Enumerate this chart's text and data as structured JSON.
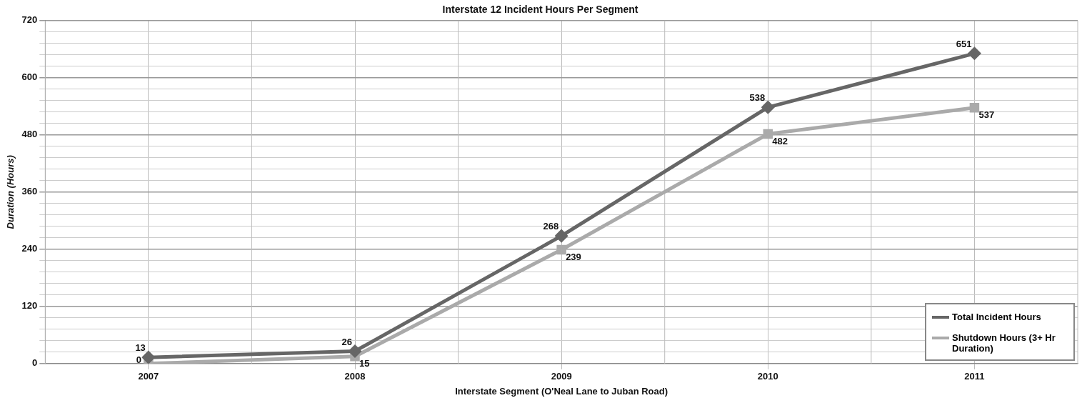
{
  "chart_data": {
    "type": "line",
    "title": "Interstate 12 Incident Hours Per Segment",
    "xlabel": "Interstate Segment (O'Neal Lane to Juban Road)",
    "ylabel": "Duration (Hours)",
    "categories": [
      "2007",
      "2008",
      "2009",
      "2010",
      "2011"
    ],
    "series": [
      {
        "name": "Total Incident Hours",
        "color": "#666666",
        "marker": "diamond",
        "values": [
          13,
          26,
          268,
          538,
          651
        ]
      },
      {
        "name": "Shutdown Hours (3+ Hr Duration)",
        "color": "#aaaaaa",
        "marker": "square",
        "values": [
          0,
          15,
          239,
          482,
          537
        ]
      }
    ],
    "ylim": [
      0,
      720
    ],
    "yticks": [
      0,
      {
        "value": 24,
        "label": null
      },
      {
        "value": 48,
        "label": null
      },
      {
        "value": 72,
        "label": null
      },
      {
        "value": 96,
        "label": null
      },
      120,
      {
        "value": 144,
        "label": null
      },
      {
        "value": 168,
        "label": null
      },
      {
        "value": 192,
        "label": null
      },
      {
        "value": 216,
        "label": null
      },
      240,
      {
        "value": 264,
        "label": null
      },
      {
        "value": 288,
        "label": null
      },
      {
        "value": 312,
        "label": null
      },
      {
        "value": 336,
        "label": null
      },
      360,
      {
        "value": 384,
        "label": null
      },
      {
        "value": 408,
        "label": null
      },
      {
        "value": 432,
        "label": null
      },
      {
        "value": 456,
        "label": null
      },
      480,
      {
        "value": 504,
        "label": null
      },
      {
        "value": 528,
        "label": null
      },
      {
        "value": 552,
        "label": null
      },
      {
        "value": 576,
        "label": null
      },
      600,
      {
        "value": 624,
        "label": null
      },
      {
        "value": 648,
        "label": null
      },
      {
        "value": 672,
        "label": null
      },
      {
        "value": 696,
        "label": null
      },
      720
    ],
    "grid": true,
    "legend": "bottom right",
    "data_labels": true,
    "line_style": "solid"
  }
}
